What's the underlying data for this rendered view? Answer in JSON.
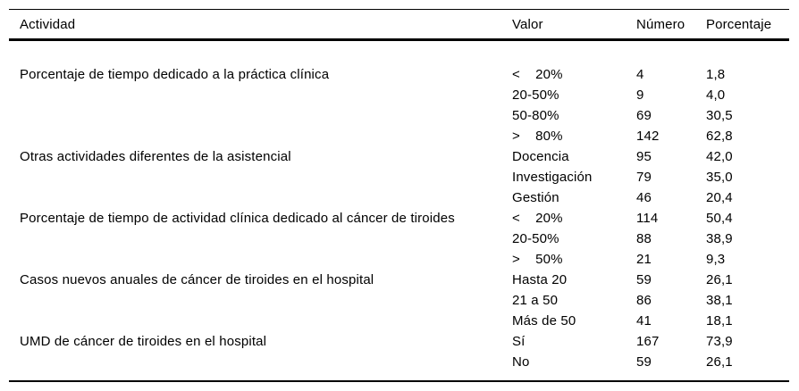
{
  "colors": {
    "text": "#000000",
    "background": "#ffffff",
    "rule": "#000000"
  },
  "table": {
    "headers": {
      "actividad": "Actividad",
      "valor": "Valor",
      "numero": "Número",
      "porcentaje": "Porcentaje"
    },
    "rows": [
      {
        "actividad": "Porcentaje de tiempo dedicado a la práctica clínica",
        "valor": "<    20%",
        "numero": "4",
        "porcentaje": "1,8"
      },
      {
        "actividad": "",
        "valor": "20-50%",
        "numero": "9",
        "porcentaje": "4,0"
      },
      {
        "actividad": "",
        "valor": "50-80%",
        "numero": "69",
        "porcentaje": "30,5"
      },
      {
        "actividad": "",
        "valor": ">    80%",
        "numero": "142",
        "porcentaje": "62,8"
      },
      {
        "actividad": "Otras actividades diferentes de la asistencial",
        "valor": "Docencia",
        "numero": "95",
        "porcentaje": "42,0"
      },
      {
        "actividad": "",
        "valor": "Investigación",
        "numero": "79",
        "porcentaje": "35,0"
      },
      {
        "actividad": "",
        "valor": "Gestión",
        "numero": "46",
        "porcentaje": "20,4"
      },
      {
        "actividad": "Porcentaje de tiempo de actividad clínica dedicado al cáncer de tiroides",
        "valor": "<    20%",
        "numero": "114",
        "porcentaje": "50,4"
      },
      {
        "actividad": "",
        "valor": "20-50%",
        "numero": "88",
        "porcentaje": "38,9"
      },
      {
        "actividad": "",
        "valor": ">    50%",
        "numero": "21",
        "porcentaje": "9,3"
      },
      {
        "actividad": "Casos nuevos anuales de cáncer de tiroides en el hospital",
        "valor": "Hasta 20",
        "numero": "59",
        "porcentaje": "26,1"
      },
      {
        "actividad": "",
        "valor": "21 a 50",
        "numero": "86",
        "porcentaje": "38,1"
      },
      {
        "actividad": "",
        "valor": "Más de 50",
        "numero": "41",
        "porcentaje": "18,1"
      },
      {
        "actividad": "UMD de cáncer de tiroides en el hospital",
        "valor": "Sí",
        "numero": "167",
        "porcentaje": "73,9"
      },
      {
        "actividad": "",
        "valor": "No",
        "numero": "59",
        "porcentaje": "26,1"
      }
    ]
  }
}
